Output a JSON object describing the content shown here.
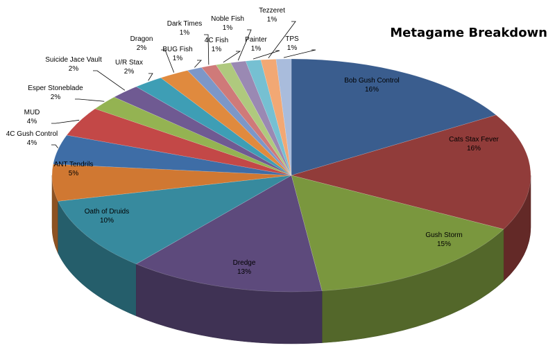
{
  "chart_data": {
    "type": "pie",
    "title": "Metagame Breakdown",
    "style": "3d-exploded-none",
    "slices": [
      {
        "name": "Bob Gush Control",
        "value": 16,
        "label": "16%",
        "color": "#3A5D8E"
      },
      {
        "name": "Cats Stax Fever",
        "value": 16,
        "label": "16%",
        "color": "#913C3A"
      },
      {
        "name": "Gush Storm",
        "value": 15,
        "label": "15%",
        "color": "#7A973E"
      },
      {
        "name": "Dredge",
        "value": 13,
        "label": "13%",
        "color": "#5D4A7C"
      },
      {
        "name": "Oath of Druids",
        "value": 10,
        "label": "10%",
        "color": "#378A9E"
      },
      {
        "name": "ANT Tendrils",
        "value": 5,
        "label": "5%",
        "color": "#D07832"
      },
      {
        "name": "4C Gush Control",
        "value": 4,
        "label": "4%",
        "color": "#3E6DA6"
      },
      {
        "name": "MUD",
        "value": 4,
        "label": "4%",
        "color": "#C34847"
      },
      {
        "name": "Esper Stoneblade",
        "value": 2,
        "label": "2%",
        "color": "#94B352"
      },
      {
        "name": "Suicide Jace Vault",
        "value": 2,
        "label": "2%",
        "color": "#6F5A92"
      },
      {
        "name": "U/R Stax",
        "value": 2,
        "label": "2%",
        "color": "#3E9EB5"
      },
      {
        "name": "Dragon",
        "value": 2,
        "label": "2%",
        "color": "#E08A3E"
      },
      {
        "name": "BUG Fish",
        "value": 1,
        "label": "1%",
        "color": "#7C97C8"
      },
      {
        "name": "Dark Times",
        "value": 1,
        "label": "1%",
        "color": "#CF7A79"
      },
      {
        "name": "4C Fish",
        "value": 1,
        "label": "1%",
        "color": "#AFC97E"
      },
      {
        "name": "Noble Fish",
        "value": 1,
        "label": "1%",
        "color": "#9A89B3"
      },
      {
        "name": "Painter",
        "value": 1,
        "label": "1%",
        "color": "#76C0D2"
      },
      {
        "name": "Tezzeret",
        "value": 1,
        "label": "1%",
        "color": "#F2A874"
      },
      {
        "name": "TPS",
        "value": 1,
        "label": "1%",
        "color": "#A9BCDC"
      }
    ]
  }
}
